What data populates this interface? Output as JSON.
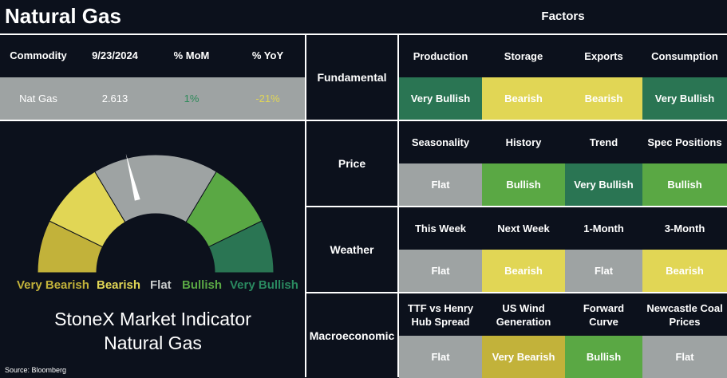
{
  "header": {
    "title": "Natural Gas",
    "factors_title": "Factors"
  },
  "commodity_table": {
    "headers": [
      "Commodity",
      "9/23/2024",
      "% MoM",
      "% YoY"
    ],
    "row": {
      "commodity": "Nat Gas",
      "price": "2.613",
      "mom": "1%",
      "yoy": "-21%"
    }
  },
  "colors": {
    "very_bullish": "#2a7553",
    "bullish": "#5aa844",
    "flat": "#9ea3a3",
    "bearish": "#e1d655",
    "very_bearish": "#c2b23a",
    "mom_text": "#2e8a5a",
    "yoy_text": "#e1d655",
    "background": "#0c111c"
  },
  "gauge": {
    "labels": [
      "Very Bearish",
      "Bearish",
      "Flat",
      "Bullish",
      "Very Bullish"
    ],
    "needle_reading": "Flat"
  },
  "indicator": {
    "line1": "StoneX Market Indicator",
    "line2": "Natural Gas"
  },
  "source": "Source: Bloomberg",
  "categories": [
    {
      "name": "Fundamental",
      "factors": [
        {
          "label": "Production",
          "value": "Very Bullish",
          "cls": "vbull"
        },
        {
          "label": "Storage",
          "value": "Bearish",
          "cls": "bear"
        },
        {
          "label": "Exports",
          "value": "Bearish",
          "cls": "bear"
        },
        {
          "label": "Consumption",
          "value": "Very Bullish",
          "cls": "vbull"
        }
      ]
    },
    {
      "name": "Price",
      "factors": [
        {
          "label": "Seasonality",
          "value": "Flat",
          "cls": "flat"
        },
        {
          "label": "History",
          "value": "Bullish",
          "cls": "bull"
        },
        {
          "label": "Trend",
          "value": "Very Bullish",
          "cls": "vbull"
        },
        {
          "label": "Spec Positions",
          "value": "Bullish",
          "cls": "bull"
        }
      ]
    },
    {
      "name": "Weather",
      "factors": [
        {
          "label": "This Week",
          "value": "Flat",
          "cls": "flat"
        },
        {
          "label": "Next Week",
          "value": "Bearish",
          "cls": "bear"
        },
        {
          "label": "1-Month",
          "value": "Flat",
          "cls": "flat"
        },
        {
          "label": "3-Month",
          "value": "Bearish",
          "cls": "bear"
        }
      ]
    },
    {
      "name": "Macroeconomic",
      "factors": [
        {
          "label": "TTF vs Henry Hub Spread",
          "value": "Flat",
          "cls": "flat"
        },
        {
          "label": "US Wind Generation",
          "value": "Very Bearish",
          "cls": "vbear"
        },
        {
          "label": "Forward Curve",
          "value": "Bullish",
          "cls": "bull"
        },
        {
          "label": "Newcastle Coal Prices",
          "value": "Flat",
          "cls": "flat"
        }
      ]
    }
  ]
}
